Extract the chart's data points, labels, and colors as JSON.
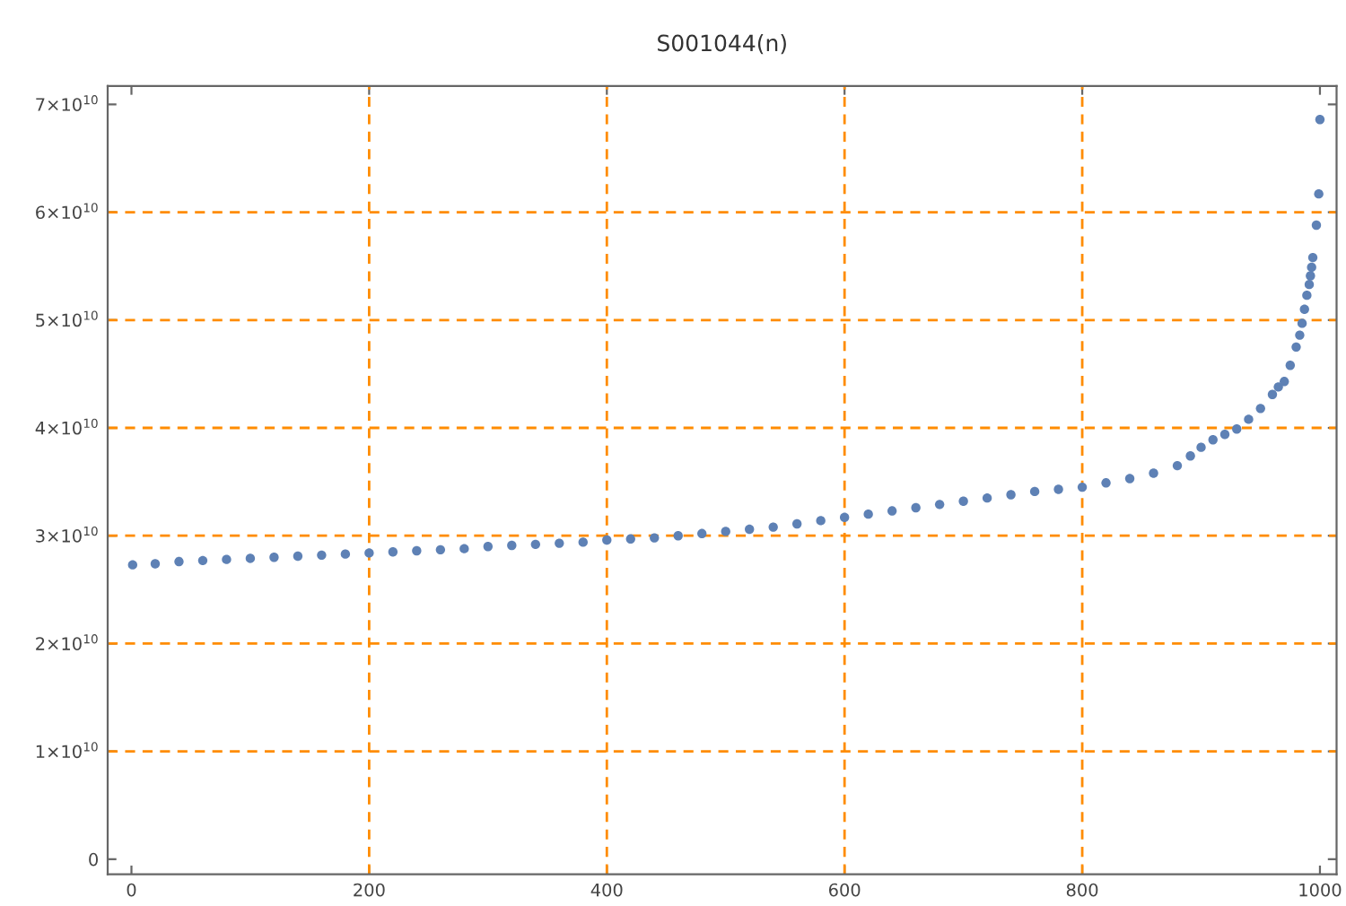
{
  "chart_data": {
    "type": "scatter",
    "title": "S001044(n)",
    "x": [
      1,
      20,
      40,
      60,
      80,
      100,
      120,
      140,
      160,
      180,
      200,
      220,
      240,
      260,
      280,
      300,
      320,
      340,
      360,
      380,
      400,
      420,
      440,
      460,
      480,
      500,
      520,
      540,
      560,
      580,
      600,
      620,
      640,
      660,
      680,
      700,
      720,
      740,
      760,
      780,
      800,
      820,
      840,
      860,
      880,
      891,
      900,
      910,
      920,
      930,
      940,
      950,
      960,
      965,
      970,
      975,
      980,
      983,
      985,
      987,
      989,
      991,
      992,
      993,
      994,
      997,
      999,
      1000
    ],
    "series": [
      {
        "color": "#5e81b5",
        "values": [
          27300000000.0,
          27400000000.0,
          27600000000.0,
          27700000000.0,
          27800000000.0,
          27900000000.0,
          28000000000.0,
          28100000000.0,
          28200000000.0,
          28300000000.0,
          28400000000.0,
          28500000000.0,
          28600000000.0,
          28700000000.0,
          28800000000.0,
          29000000000.0,
          29100000000.0,
          29200000000.0,
          29300000000.0,
          29400000000.0,
          29600000000.0,
          29700000000.0,
          29800000000.0,
          30000000000.0,
          30200000000.0,
          30400000000.0,
          30600000000.0,
          30800000000.0,
          31100000000.0,
          31400000000.0,
          31700000000.0,
          32000000000.0,
          32300000000.0,
          32600000000.0,
          32900000000.0,
          33200000000.0,
          33500000000.0,
          33800000000.0,
          34100000000.0,
          34300000000.0,
          34500000000.0,
          34900000000.0,
          35300000000.0,
          35800000000.0,
          36500000000.0,
          37400000000.0,
          38200000000.0,
          38900000000.0,
          39400000000.0,
          39900000000.0,
          40800000000.0,
          41800000000.0,
          43100000000.0,
          43800000000.0,
          44300000000.0,
          45800000000.0,
          47500000000.0,
          48600000000.0,
          49700000000.0,
          51000000000.0,
          52300000000.0,
          53300000000.0,
          54100000000.0,
          54900000000.0,
          55800000000.0,
          58800000000.0,
          61700000000.0,
          68600000000.0
        ]
      }
    ],
    "marker": "circle",
    "xlim": [
      -20,
      1014
    ],
    "ylim": [
      -1400000000.0,
      71700000000.0
    ],
    "xticks": [
      0,
      200,
      400,
      600,
      800,
      1000
    ],
    "yticks": [
      0,
      {
        "value": 10000000000.0,
        "label": "1×10$^{10}$"
      },
      {
        "value": 20000000000.0,
        "label": "2×10$^{10}$"
      },
      {
        "value": 30000000000.0,
        "label": "3×10$^{10}$"
      },
      {
        "value": 40000000000.0,
        "label": "4×10$^{10}$"
      },
      {
        "value": 50000000000.0,
        "label": "5×10$^{10}$"
      },
      {
        "value": 60000000000.0,
        "label": "6×10$^{10}$"
      },
      {
        "value": 70000000000.0,
        "label": "7×10$^{10}$"
      }
    ],
    "ref_lines": [
      {
        "axis": "x",
        "value": 200,
        "color": "#ff8c00",
        "line_style": "dashed"
      },
      {
        "axis": "x",
        "value": 400,
        "color": "#ff8c00",
        "line_style": "dashed"
      },
      {
        "axis": "x",
        "value": 600,
        "color": "#ff8c00",
        "line_style": "dashed"
      },
      {
        "axis": "x",
        "value": 800,
        "color": "#ff8c00",
        "line_style": "dashed"
      },
      {
        "axis": "y",
        "value": 10000000000.0,
        "color": "#ff8c00",
        "line_style": "dashed"
      },
      {
        "axis": "y",
        "value": 20000000000.0,
        "color": "#ff8c00",
        "line_style": "dashed"
      },
      {
        "axis": "y",
        "value": 30000000000.0,
        "color": "#ff8c00",
        "line_style": "dashed"
      },
      {
        "axis": "y",
        "value": 40000000000.0,
        "color": "#ff8c00",
        "line_style": "dashed"
      },
      {
        "axis": "y",
        "value": 50000000000.0,
        "color": "#ff8c00",
        "line_style": "dashed"
      },
      {
        "axis": "y",
        "value": 60000000000.0,
        "color": "#ff8c00",
        "line_style": "dashed"
      }
    ]
  }
}
